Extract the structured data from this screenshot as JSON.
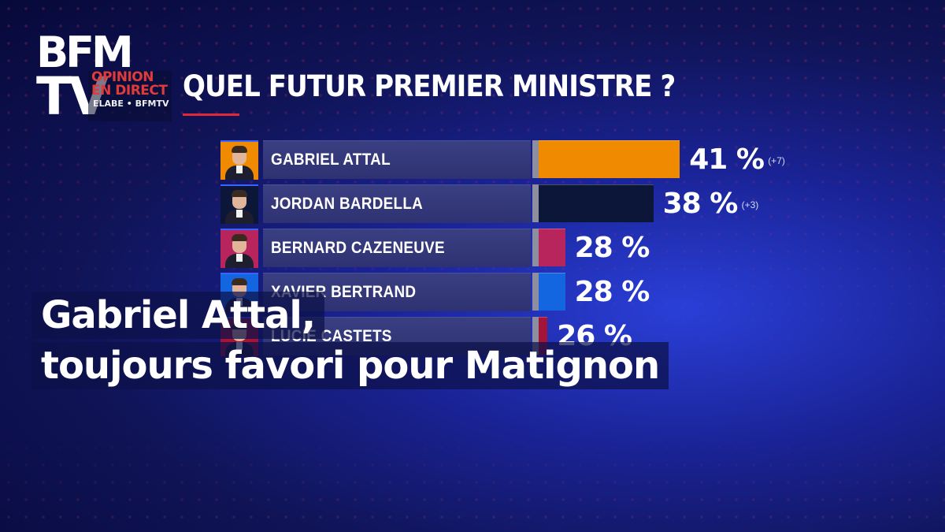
{
  "logo": {
    "line1": "BFM",
    "line2": "TV"
  },
  "sublogo": {
    "line1": "OPINION",
    "line2": "EN DIRECT",
    "line3": "ELABE • BFMTV"
  },
  "title": "QUEL FUTUR PREMIER MINISTRE ?",
  "chart_data": {
    "type": "bar",
    "orientation": "horizontal",
    "title": "QUEL FUTUR PREMIER MINISTRE ?",
    "unit": "%",
    "xlim": [
      0,
      100
    ],
    "categories": [
      "GABRIEL ATTAL",
      "JORDAN BARDELLA",
      "BERNARD CAZENEUVE",
      "XAVIER BERTRAND",
      "LUCIE CASTETS"
    ],
    "values": [
      41,
      38,
      28,
      28,
      26
    ],
    "value_labels": [
      "41 %",
      "38 %",
      "28 %",
      "28 %",
      "26 %"
    ],
    "deltas": [
      "(+7)",
      "(+3)",
      "",
      "",
      ""
    ],
    "colors": [
      "#f08a00",
      "#0b1638",
      "#b8245c",
      "#1366e0",
      "#a3163a"
    ]
  },
  "caption": {
    "line1": "Gabriel Attal,",
    "line2": "toujours favori pour Matignon"
  }
}
